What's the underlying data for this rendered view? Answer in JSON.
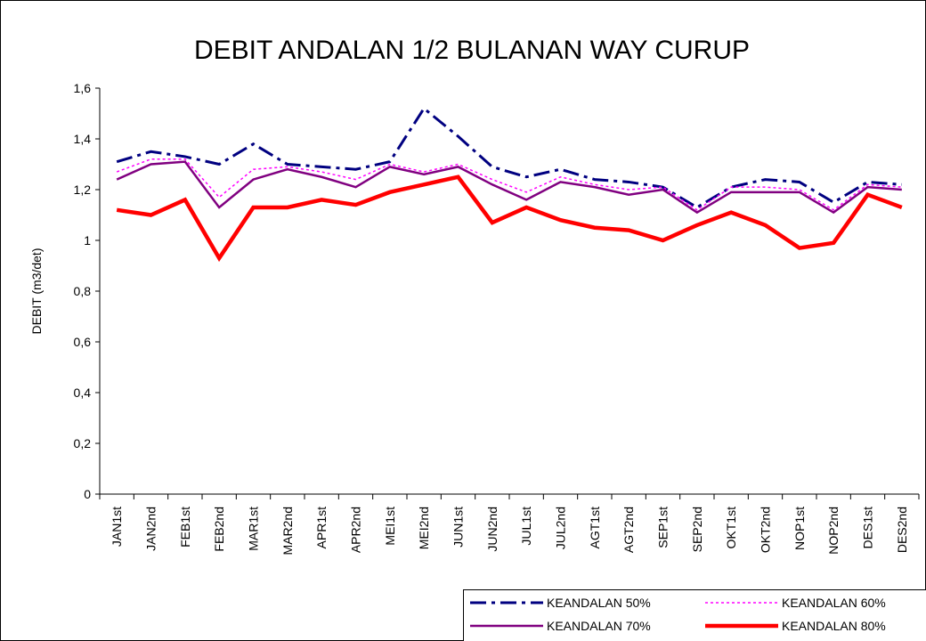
{
  "chart_data": {
    "type": "line",
    "title": "DEBIT ANDALAN 1/2 BULANAN WAY CURUP",
    "y_label": "DEBIT (m3/det)",
    "categories": [
      "JAN1st",
      "JAN2nd",
      "FEB1st",
      "FEB2nd",
      "MAR1st",
      "MAR2nd",
      "APR1st",
      "APR2nd",
      "MEI1st",
      "MEI2nd",
      "JUN1st",
      "JUN2nd",
      "JUL1st",
      "JUL2nd",
      "AGT1st",
      "AGT2nd",
      "SEP1st",
      "SEP2nd",
      "OKT1st",
      "OKT2nd",
      "NOP1st",
      "NOP2nd",
      "DES1st",
      "DES2nd"
    ],
    "series": [
      {
        "name": "KEANDALAN 50%",
        "color": "#000080",
        "dash": "dash-dot",
        "values": [
          1.31,
          1.35,
          1.33,
          1.3,
          1.38,
          1.3,
          1.29,
          1.28,
          1.31,
          1.52,
          1.41,
          1.29,
          1.25,
          1.28,
          1.24,
          1.23,
          1.21,
          1.13,
          1.21,
          1.24,
          1.23,
          1.15,
          1.23,
          1.22
        ]
      },
      {
        "name": "KEANDALAN 60%",
        "color": "#FF00FF",
        "dash": "dotted",
        "values": [
          1.27,
          1.32,
          1.32,
          1.17,
          1.28,
          1.29,
          1.27,
          1.24,
          1.3,
          1.27,
          1.3,
          1.24,
          1.19,
          1.25,
          1.22,
          1.2,
          1.21,
          1.12,
          1.21,
          1.21,
          1.2,
          1.12,
          1.22,
          1.21
        ]
      },
      {
        "name": "KEANDALAN 70%",
        "color": "#800080",
        "dash": "solid",
        "values": [
          1.24,
          1.3,
          1.31,
          1.13,
          1.24,
          1.28,
          1.25,
          1.21,
          1.29,
          1.26,
          1.29,
          1.22,
          1.16,
          1.23,
          1.21,
          1.18,
          1.2,
          1.11,
          1.19,
          1.19,
          1.19,
          1.11,
          1.21,
          1.2
        ]
      },
      {
        "name": "KEANDALAN 80%",
        "color": "#FF0000",
        "dash": "solid",
        "values": [
          1.12,
          1.1,
          1.16,
          0.93,
          1.13,
          1.13,
          1.16,
          1.14,
          1.19,
          1.22,
          1.25,
          1.07,
          1.13,
          1.08,
          1.05,
          1.04,
          1.0,
          1.06,
          1.11,
          1.06,
          0.97,
          0.99,
          1.18,
          1.13
        ]
      }
    ],
    "ylim": [
      0,
      1.6
    ],
    "yticks": [
      0,
      {
        "value": 0.2,
        "label": "0,2"
      },
      {
        "value": 0.4,
        "label": "0,4"
      },
      {
        "value": 0.6,
        "label": "0,6"
      },
      {
        "value": 0.8,
        "label": "0,8"
      },
      1,
      {
        "value": 1.2,
        "label": "1,2"
      },
      {
        "value": 1.4,
        "label": "1,4"
      },
      {
        "value": 1.6,
        "label": "1,6"
      }
    ],
    "legend": "bottom-right"
  }
}
